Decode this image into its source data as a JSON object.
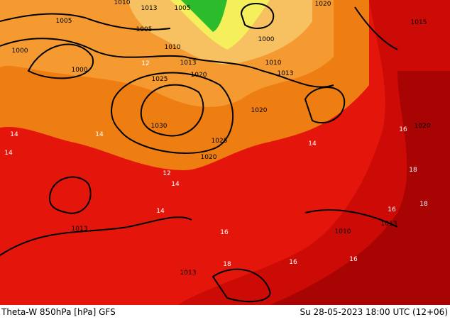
{
  "footer": {
    "left": "Theta-W 850hPa [hPa] GFS",
    "right": "Su 28-05-2023 18:00 UTC (12+06)"
  },
  "isobar_labels": [
    "1005",
    "1010",
    "1013",
    "1005",
    "1005",
    "1000",
    "1000",
    "1010",
    "1013",
    "1020",
    "1025",
    "1000",
    "1010",
    "1013",
    "1020",
    "1030",
    "1025",
    "1020",
    "1013",
    "1020",
    "1013",
    "1010",
    "1013",
    "1015",
    "1020"
  ],
  "isotherm_labels": [
    "14",
    "14",
    "12",
    "12",
    "14",
    "14",
    "16",
    "16",
    "18",
    "16",
    "16",
    "18",
    "14",
    "16",
    "18",
    "14"
  ]
}
